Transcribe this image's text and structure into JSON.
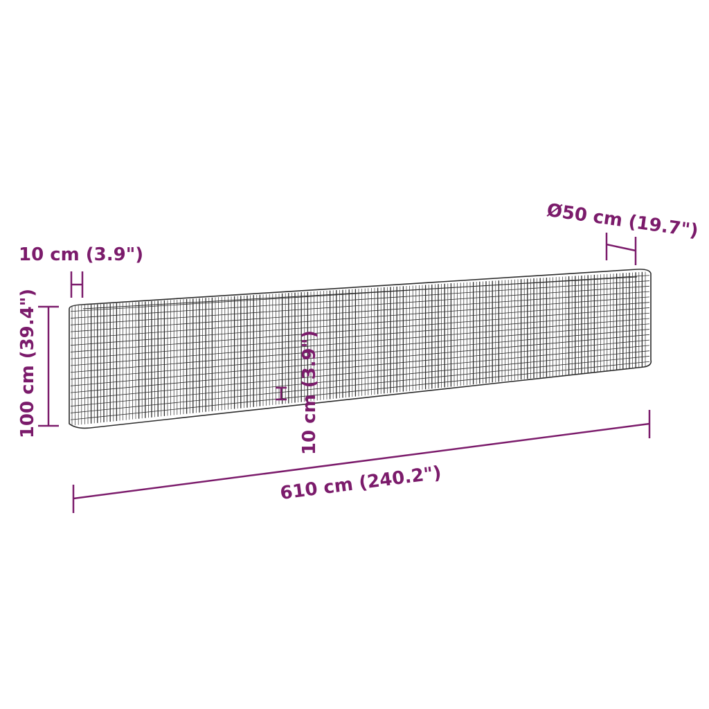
{
  "colors": {
    "dimension": "#7b1b6b",
    "wire": "#2a2a2a"
  },
  "dimensions": {
    "diameter": "Ø50 cm (19.7\")",
    "wall_thickness": "10 cm (3.9\")",
    "height": "100 cm (39.4\")",
    "mesh_spacing": "10 cm (3.9\")",
    "length": "610 cm (240.2\")"
  }
}
